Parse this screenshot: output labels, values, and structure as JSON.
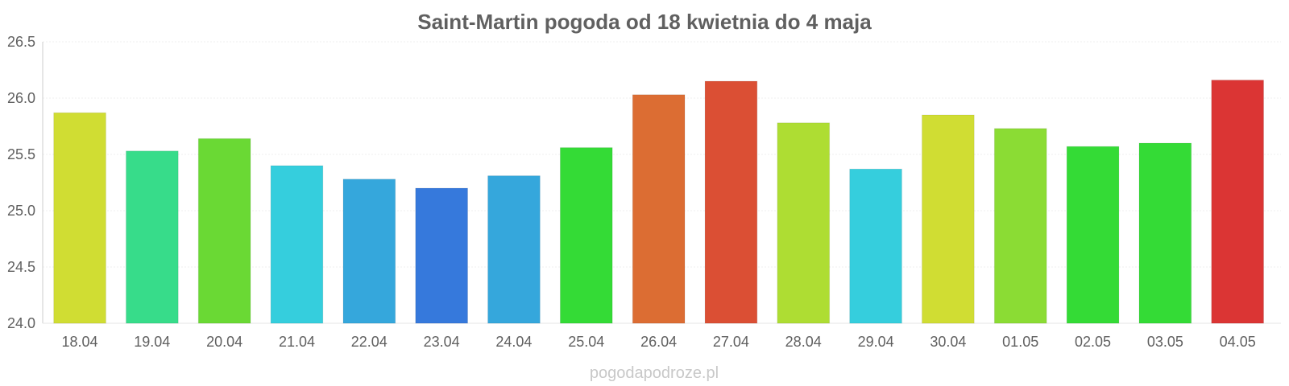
{
  "chart_data": {
    "type": "bar",
    "title": "Saint-Martin pogoda od 18 kwietnia do 4 maja",
    "xlabel": "",
    "ylabel": "",
    "categories": [
      "18.04",
      "19.04",
      "20.04",
      "21.04",
      "22.04",
      "23.04",
      "24.04",
      "25.04",
      "26.04",
      "27.04",
      "28.04",
      "29.04",
      "30.04",
      "01.05",
      "02.05",
      "03.05",
      "04.05"
    ],
    "values": [
      25.87,
      25.53,
      25.64,
      25.4,
      25.28,
      25.2,
      25.31,
      25.56,
      26.03,
      26.15,
      25.78,
      25.37,
      25.85,
      25.73,
      25.57,
      25.6,
      26.16
    ],
    "colors": [
      "#d0dd33",
      "#37dc8a",
      "#6ad934",
      "#35cedd",
      "#35a7dc",
      "#3679dc",
      "#35a7dc",
      "#34db36",
      "#dc6d33",
      "#db4f34",
      "#aedd33",
      "#35cedd",
      "#d0dd33",
      "#8bdc34",
      "#34db36",
      "#34db36",
      "#db3534"
    ],
    "ylim": [
      24.0,
      26.5
    ],
    "yticks": [
      "24.0",
      "24.5",
      "25.0",
      "25.5",
      "26.0",
      "26.5"
    ],
    "grid": true,
    "legend": "none"
  },
  "footer": {
    "watermark": "pogodapodroze.pl"
  }
}
